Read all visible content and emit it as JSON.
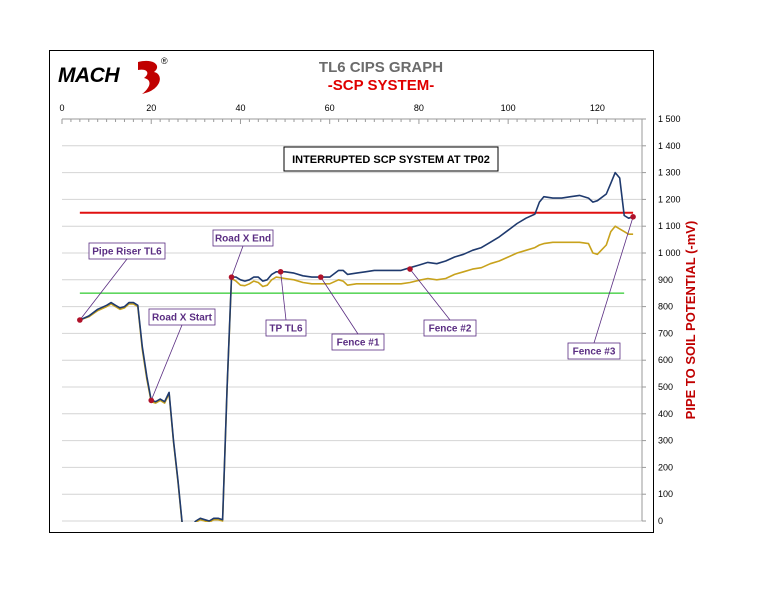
{
  "header": {
    "logo_text": "MACH",
    "logo_mark": "®",
    "title": "TL6 CIPS GRAPH",
    "subtitle": "-SCP SYSTEM-"
  },
  "chart_data": {
    "type": "line",
    "title": "TL6 CIPS GRAPH",
    "subtitle": "-SCP SYSTEM-",
    "annotation_box": "INTERRUPTED SCP SYSTEM AT TP02",
    "ylabel": "PIPE TO SOIL POTENTIAL (-mV)",
    "xlabel": "",
    "xlim": [
      0,
      130
    ],
    "ylim": [
      0,
      1500
    ],
    "x_ticks": [
      0,
      20,
      40,
      60,
      80,
      100,
      120
    ],
    "y_ticks": [
      0,
      100,
      200,
      300,
      400,
      500,
      600,
      700,
      800,
      900,
      1000,
      1100,
      1200,
      1300,
      1400,
      1500
    ],
    "x_axis_position": "top",
    "y_axis_position": "right",
    "grid": "horizontal",
    "series": [
      {
        "color": "#1f3a6e",
        "points": [
          [
            4,
            750
          ],
          [
            6,
            765
          ],
          [
            8,
            790
          ],
          [
            10,
            805
          ],
          [
            11,
            815
          ],
          [
            12,
            805
          ],
          [
            13,
            795
          ],
          [
            14,
            800
          ],
          [
            15,
            815
          ],
          [
            16,
            815
          ],
          [
            17,
            805
          ],
          [
            18,
            650
          ],
          [
            19,
            540
          ],
          [
            20,
            450
          ],
          [
            21,
            445
          ],
          [
            22,
            455
          ],
          [
            23,
            445
          ],
          [
            24,
            480
          ],
          [
            25,
            300
          ],
          [
            26,
            150
          ],
          [
            27,
            -20
          ],
          [
            28,
            -40
          ],
          [
            29,
            -20
          ],
          [
            30,
            0
          ],
          [
            31,
            10
          ],
          [
            32,
            5
          ],
          [
            33,
            0
          ],
          [
            34,
            10
          ],
          [
            35,
            10
          ],
          [
            36,
            5
          ],
          [
            37,
            500
          ],
          [
            38,
            910
          ],
          [
            39,
            910
          ],
          [
            40,
            900
          ],
          [
            41,
            895
          ],
          [
            42,
            900
          ],
          [
            43,
            910
          ],
          [
            44,
            910
          ],
          [
            45,
            895
          ],
          [
            46,
            900
          ],
          [
            47,
            920
          ],
          [
            48,
            930
          ],
          [
            50,
            930
          ],
          [
            52,
            925
          ],
          [
            54,
            915
          ],
          [
            56,
            910
          ],
          [
            58,
            910
          ],
          [
            60,
            910
          ],
          [
            62,
            935
          ],
          [
            63,
            935
          ],
          [
            64,
            920
          ],
          [
            66,
            925
          ],
          [
            68,
            930
          ],
          [
            70,
            935
          ],
          [
            72,
            935
          ],
          [
            74,
            935
          ],
          [
            76,
            935
          ],
          [
            78,
            945
          ],
          [
            80,
            955
          ],
          [
            82,
            965
          ],
          [
            84,
            960
          ],
          [
            86,
            970
          ],
          [
            88,
            985
          ],
          [
            90,
            995
          ],
          [
            92,
            1010
          ],
          [
            94,
            1020
          ],
          [
            96,
            1040
          ],
          [
            98,
            1060
          ],
          [
            100,
            1085
          ],
          [
            102,
            1110
          ],
          [
            104,
            1130
          ],
          [
            106,
            1145
          ],
          [
            107,
            1190
          ],
          [
            108,
            1210
          ],
          [
            110,
            1205
          ],
          [
            112,
            1205
          ],
          [
            114,
            1210
          ],
          [
            116,
            1215
          ],
          [
            118,
            1205
          ],
          [
            119,
            1190
          ],
          [
            120,
            1195
          ],
          [
            122,
            1220
          ],
          [
            123,
            1260
          ],
          [
            124,
            1300
          ],
          [
            125,
            1280
          ],
          [
            126,
            1140
          ],
          [
            127,
            1130
          ],
          [
            128,
            1135
          ]
        ]
      },
      {
        "color": "#c8a21c",
        "points": [
          [
            4,
            750
          ],
          [
            6,
            762
          ],
          [
            8,
            785
          ],
          [
            10,
            800
          ],
          [
            11,
            810
          ],
          [
            12,
            800
          ],
          [
            13,
            790
          ],
          [
            14,
            795
          ],
          [
            15,
            810
          ],
          [
            16,
            810
          ],
          [
            17,
            800
          ],
          [
            18,
            640
          ],
          [
            19,
            530
          ],
          [
            20,
            445
          ],
          [
            21,
            440
          ],
          [
            22,
            450
          ],
          [
            23,
            440
          ],
          [
            24,
            475
          ],
          [
            25,
            295
          ],
          [
            26,
            145
          ],
          [
            27,
            -25
          ],
          [
            28,
            -45
          ],
          [
            29,
            -25
          ],
          [
            30,
            -5
          ],
          [
            31,
            5
          ],
          [
            32,
            0
          ],
          [
            33,
            -5
          ],
          [
            34,
            5
          ],
          [
            35,
            5
          ],
          [
            36,
            0
          ],
          [
            37,
            495
          ],
          [
            38,
            905
          ],
          [
            39,
            895
          ],
          [
            40,
            880
          ],
          [
            41,
            878
          ],
          [
            42,
            885
          ],
          [
            43,
            895
          ],
          [
            44,
            890
          ],
          [
            45,
            875
          ],
          [
            46,
            880
          ],
          [
            47,
            900
          ],
          [
            48,
            910
          ],
          [
            50,
            905
          ],
          [
            52,
            900
          ],
          [
            54,
            890
          ],
          [
            56,
            885
          ],
          [
            58,
            885
          ],
          [
            60,
            885
          ],
          [
            62,
            900
          ],
          [
            63,
            895
          ],
          [
            64,
            880
          ],
          [
            66,
            885
          ],
          [
            68,
            885
          ],
          [
            70,
            885
          ],
          [
            72,
            885
          ],
          [
            74,
            885
          ],
          [
            76,
            885
          ],
          [
            78,
            890
          ],
          [
            80,
            898
          ],
          [
            82,
            905
          ],
          [
            84,
            900
          ],
          [
            86,
            905
          ],
          [
            88,
            920
          ],
          [
            90,
            930
          ],
          [
            92,
            940
          ],
          [
            94,
            945
          ],
          [
            96,
            960
          ],
          [
            98,
            970
          ],
          [
            100,
            985
          ],
          [
            102,
            1000
          ],
          [
            104,
            1010
          ],
          [
            106,
            1020
          ],
          [
            107,
            1030
          ],
          [
            108,
            1035
          ],
          [
            110,
            1040
          ],
          [
            112,
            1040
          ],
          [
            114,
            1040
          ],
          [
            116,
            1040
          ],
          [
            118,
            1035
          ],
          [
            119,
            1000
          ],
          [
            120,
            995
          ],
          [
            122,
            1030
          ],
          [
            123,
            1080
          ],
          [
            124,
            1100
          ],
          [
            125,
            1090
          ],
          [
            126,
            1080
          ],
          [
            127,
            1070
          ],
          [
            128,
            1070
          ]
        ]
      }
    ],
    "reference_lines": [
      {
        "value": 1150,
        "color": "#e01010",
        "x_range": [
          4,
          128
        ]
      },
      {
        "value": 850,
        "color": "#5fd65f",
        "x_range": [
          4,
          126
        ]
      }
    ],
    "annotations": [
      {
        "label": "Pipe Riser TL6",
        "x": 4,
        "y": 750
      },
      {
        "label": "Road X Start",
        "x": 20,
        "y": 450
      },
      {
        "label": "Road X End",
        "x": 38,
        "y": 910
      },
      {
        "label": "TP TL6",
        "x": 49,
        "y": 930
      },
      {
        "label": "Fence #1",
        "x": 58,
        "y": 910
      },
      {
        "label": "Fence #2",
        "x": 78,
        "y": 940
      },
      {
        "label": "Fence #3",
        "x": 128,
        "y": 1135
      }
    ],
    "colors": {
      "label_text": "#5a2d82",
      "marker": "#b0122a",
      "ylabel": "#c00000"
    }
  }
}
